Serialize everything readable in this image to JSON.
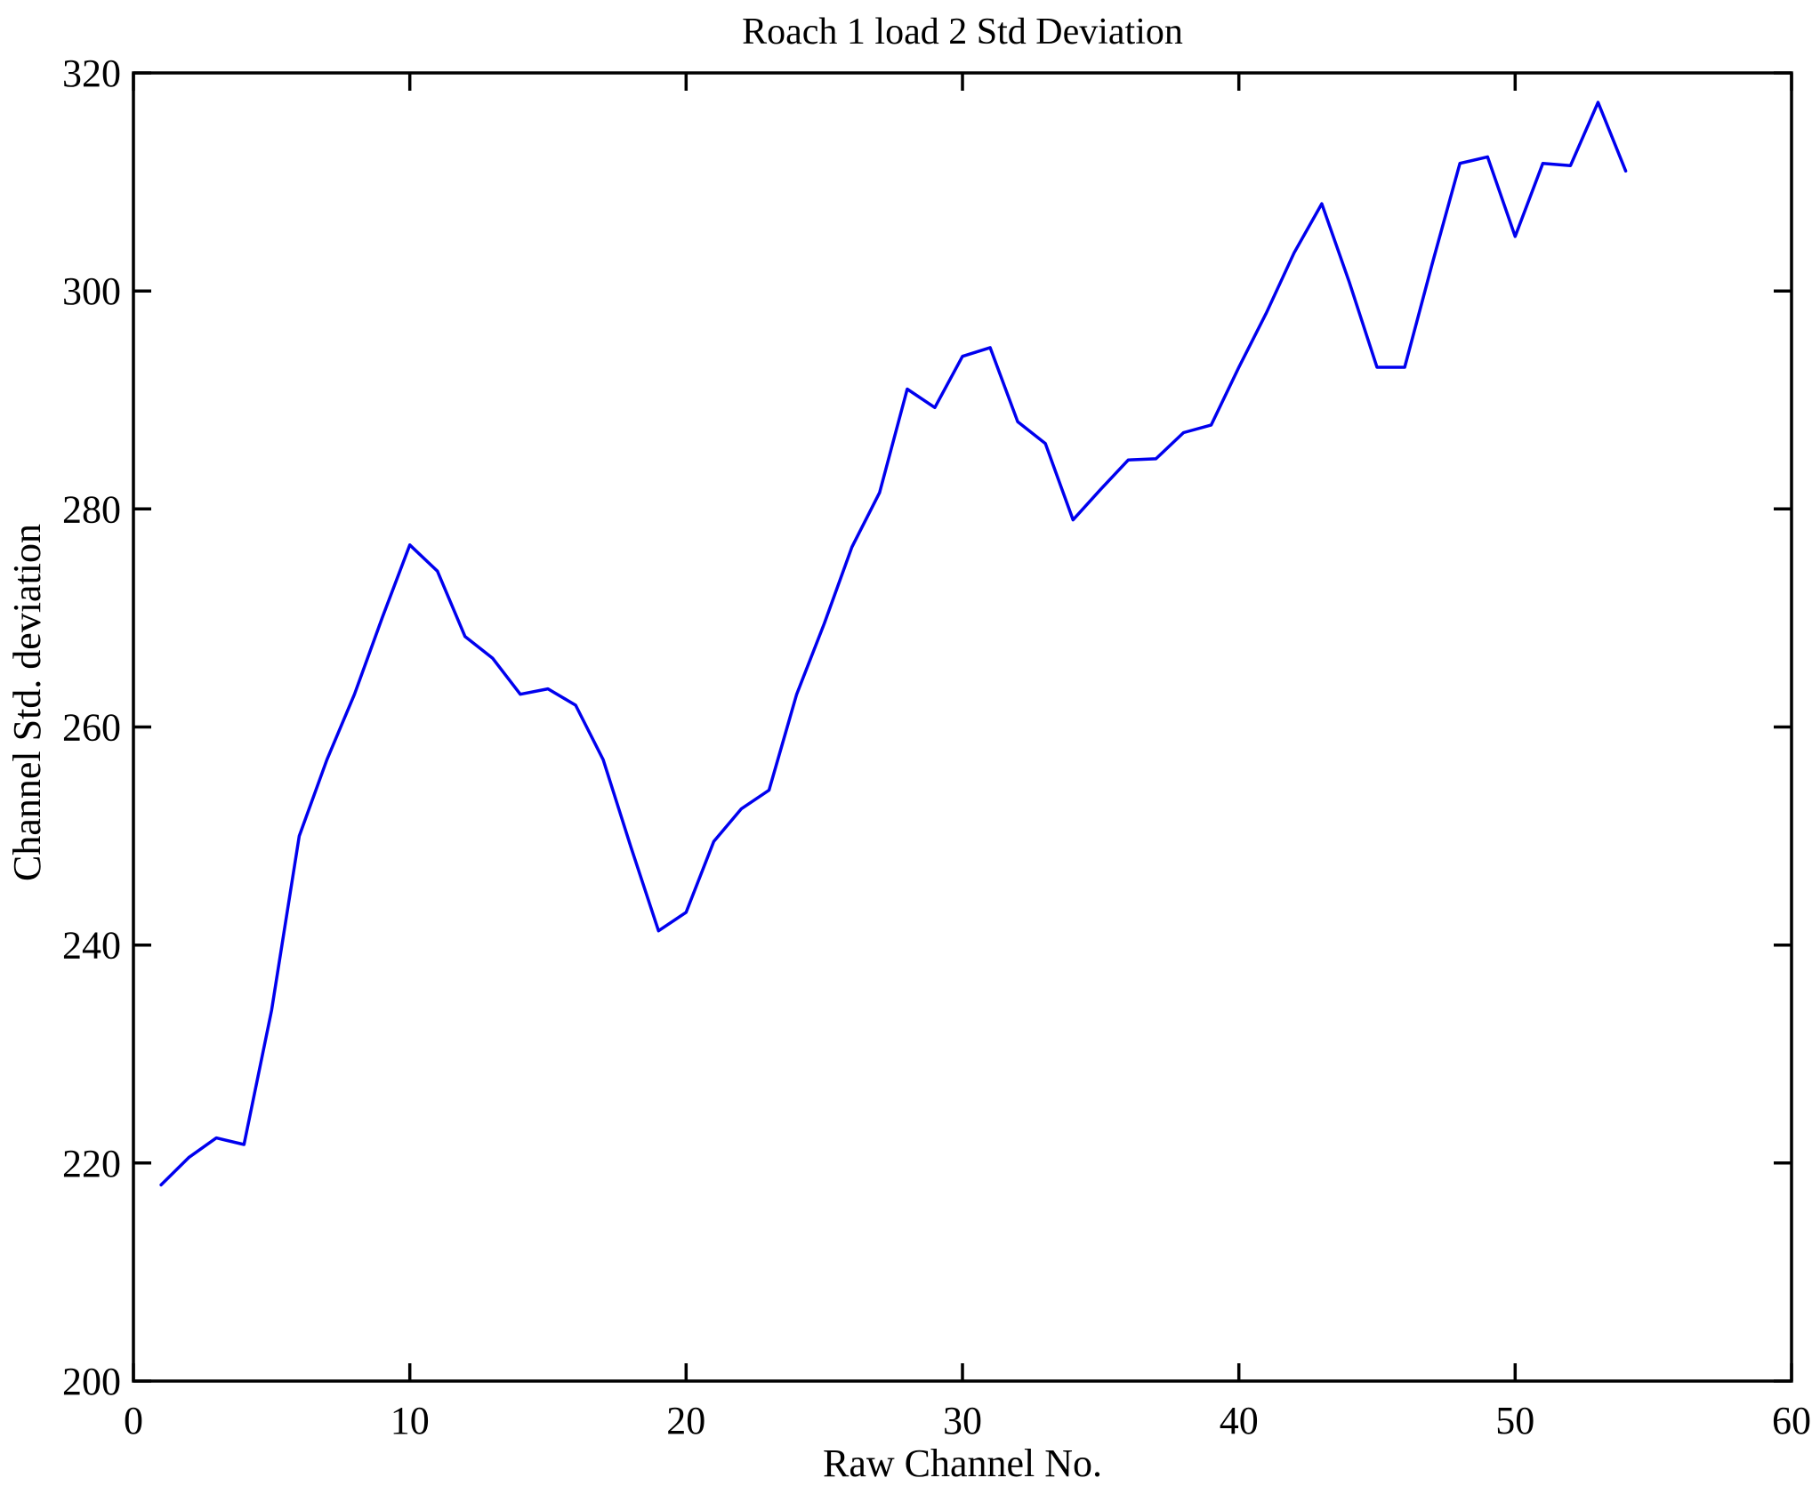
{
  "figure": {
    "background": "#ffffff"
  },
  "chart_data": {
    "type": "line",
    "title": "Roach 1 load 2 Std Deviation",
    "xlabel": "Raw Channel No.",
    "ylabel": "Channel Std. deviation",
    "xlim": [
      0,
      60
    ],
    "ylim": [
      200,
      320
    ],
    "xticks": [
      0,
      10,
      20,
      30,
      40,
      50,
      60
    ],
    "yticks": [
      200,
      220,
      240,
      260,
      280,
      300,
      320
    ],
    "grid": false,
    "legend": "none",
    "line_color": "#0000ee",
    "axis_color": "#000000",
    "series": [
      {
        "name": "Channel Std. deviation",
        "x": [
          1,
          2,
          3,
          4,
          5,
          6,
          7,
          8,
          9,
          10,
          11,
          12,
          13,
          14,
          15,
          16,
          17,
          18,
          19,
          20,
          21,
          22,
          23,
          24,
          25,
          26,
          27,
          28,
          29,
          30,
          31,
          32,
          33,
          34,
          35,
          36,
          37,
          38,
          39,
          40,
          41,
          42,
          43,
          44,
          45,
          46,
          47,
          48,
          49,
          50,
          51,
          52,
          53,
          54
        ],
        "values": [
          218.0,
          220.5,
          222.3,
          221.7,
          234.0,
          250.0,
          257.0,
          263.0,
          270.0,
          276.7,
          274.3,
          268.3,
          266.3,
          263.0,
          263.5,
          262.0,
          257.0,
          249.0,
          241.3,
          243.0,
          249.5,
          252.5,
          254.2,
          263.0,
          269.5,
          276.5,
          281.5,
          291.0,
          289.3,
          294.0,
          294.8,
          288.0,
          286.0,
          279.0,
          281.8,
          284.5,
          284.6,
          287.0,
          287.7,
          293.0,
          298.0,
          303.5,
          308.0,
          300.8,
          293.0,
          293.0,
          302.5,
          311.7,
          312.3,
          305.0,
          311.7,
          311.5,
          317.3,
          311.0
        ]
      }
    ]
  }
}
